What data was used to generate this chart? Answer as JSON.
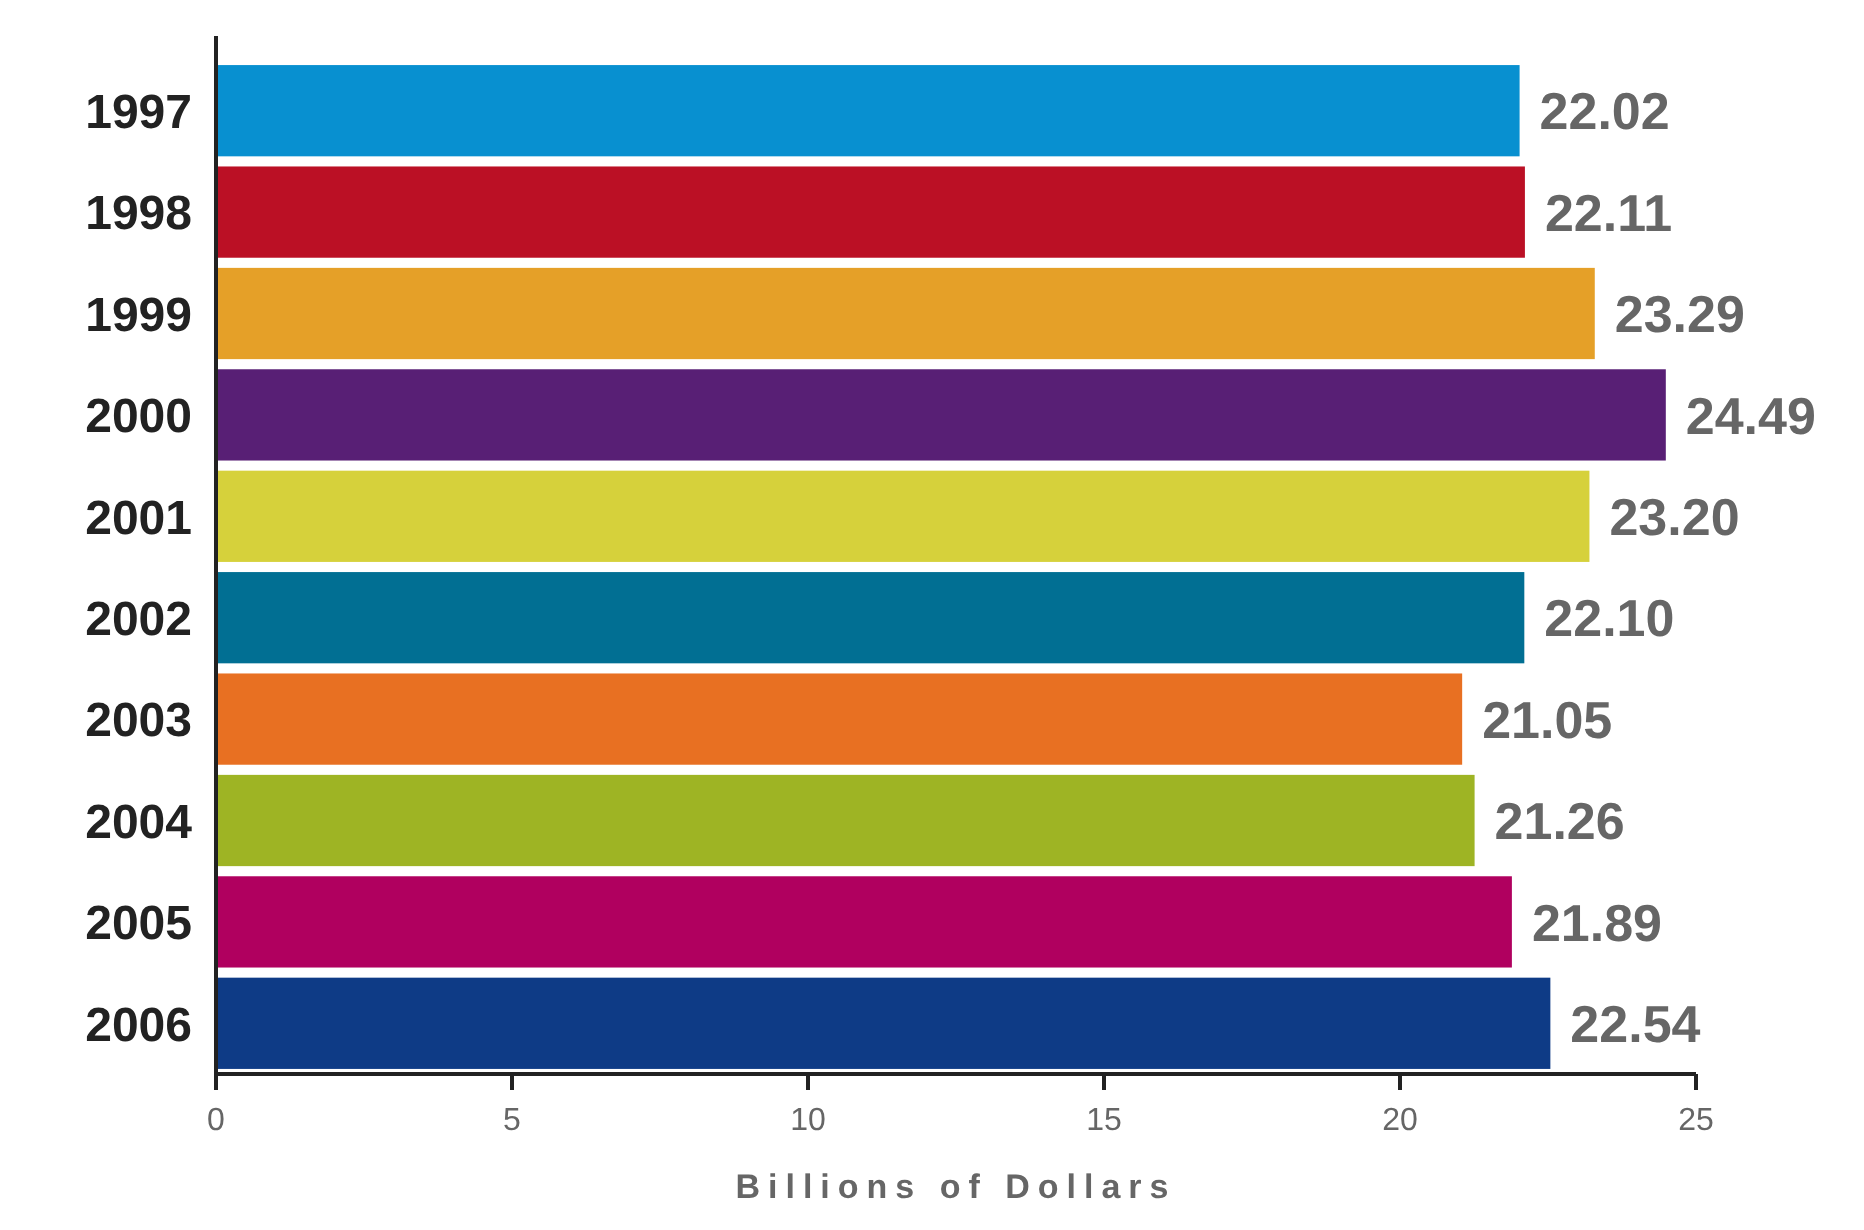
{
  "chart_data": {
    "type": "bar",
    "orientation": "horizontal",
    "xlabel": "Billions of Dollars",
    "categories": [
      "1997",
      "1998",
      "1999",
      "2000",
      "2001",
      "2002",
      "2003",
      "2004",
      "2005",
      "2006"
    ],
    "values": [
      22.02,
      22.11,
      23.29,
      24.49,
      23.2,
      22.1,
      21.05,
      21.26,
      21.89,
      22.54
    ],
    "value_labels": [
      "22.02",
      "22.11",
      "23.29",
      "24.49",
      "23.20",
      "22.10",
      "21.05",
      "21.26",
      "21.89",
      "22.54"
    ],
    "colors": [
      "#0890d0",
      "#bb1025",
      "#e5a028",
      "#581f75",
      "#d6d13b",
      "#016f93",
      "#e87022",
      "#9eb424",
      "#b0005f",
      "#0e3b86"
    ],
    "xlim": [
      0,
      25
    ],
    "xticks": [
      0,
      5,
      10,
      15,
      20,
      25
    ]
  }
}
